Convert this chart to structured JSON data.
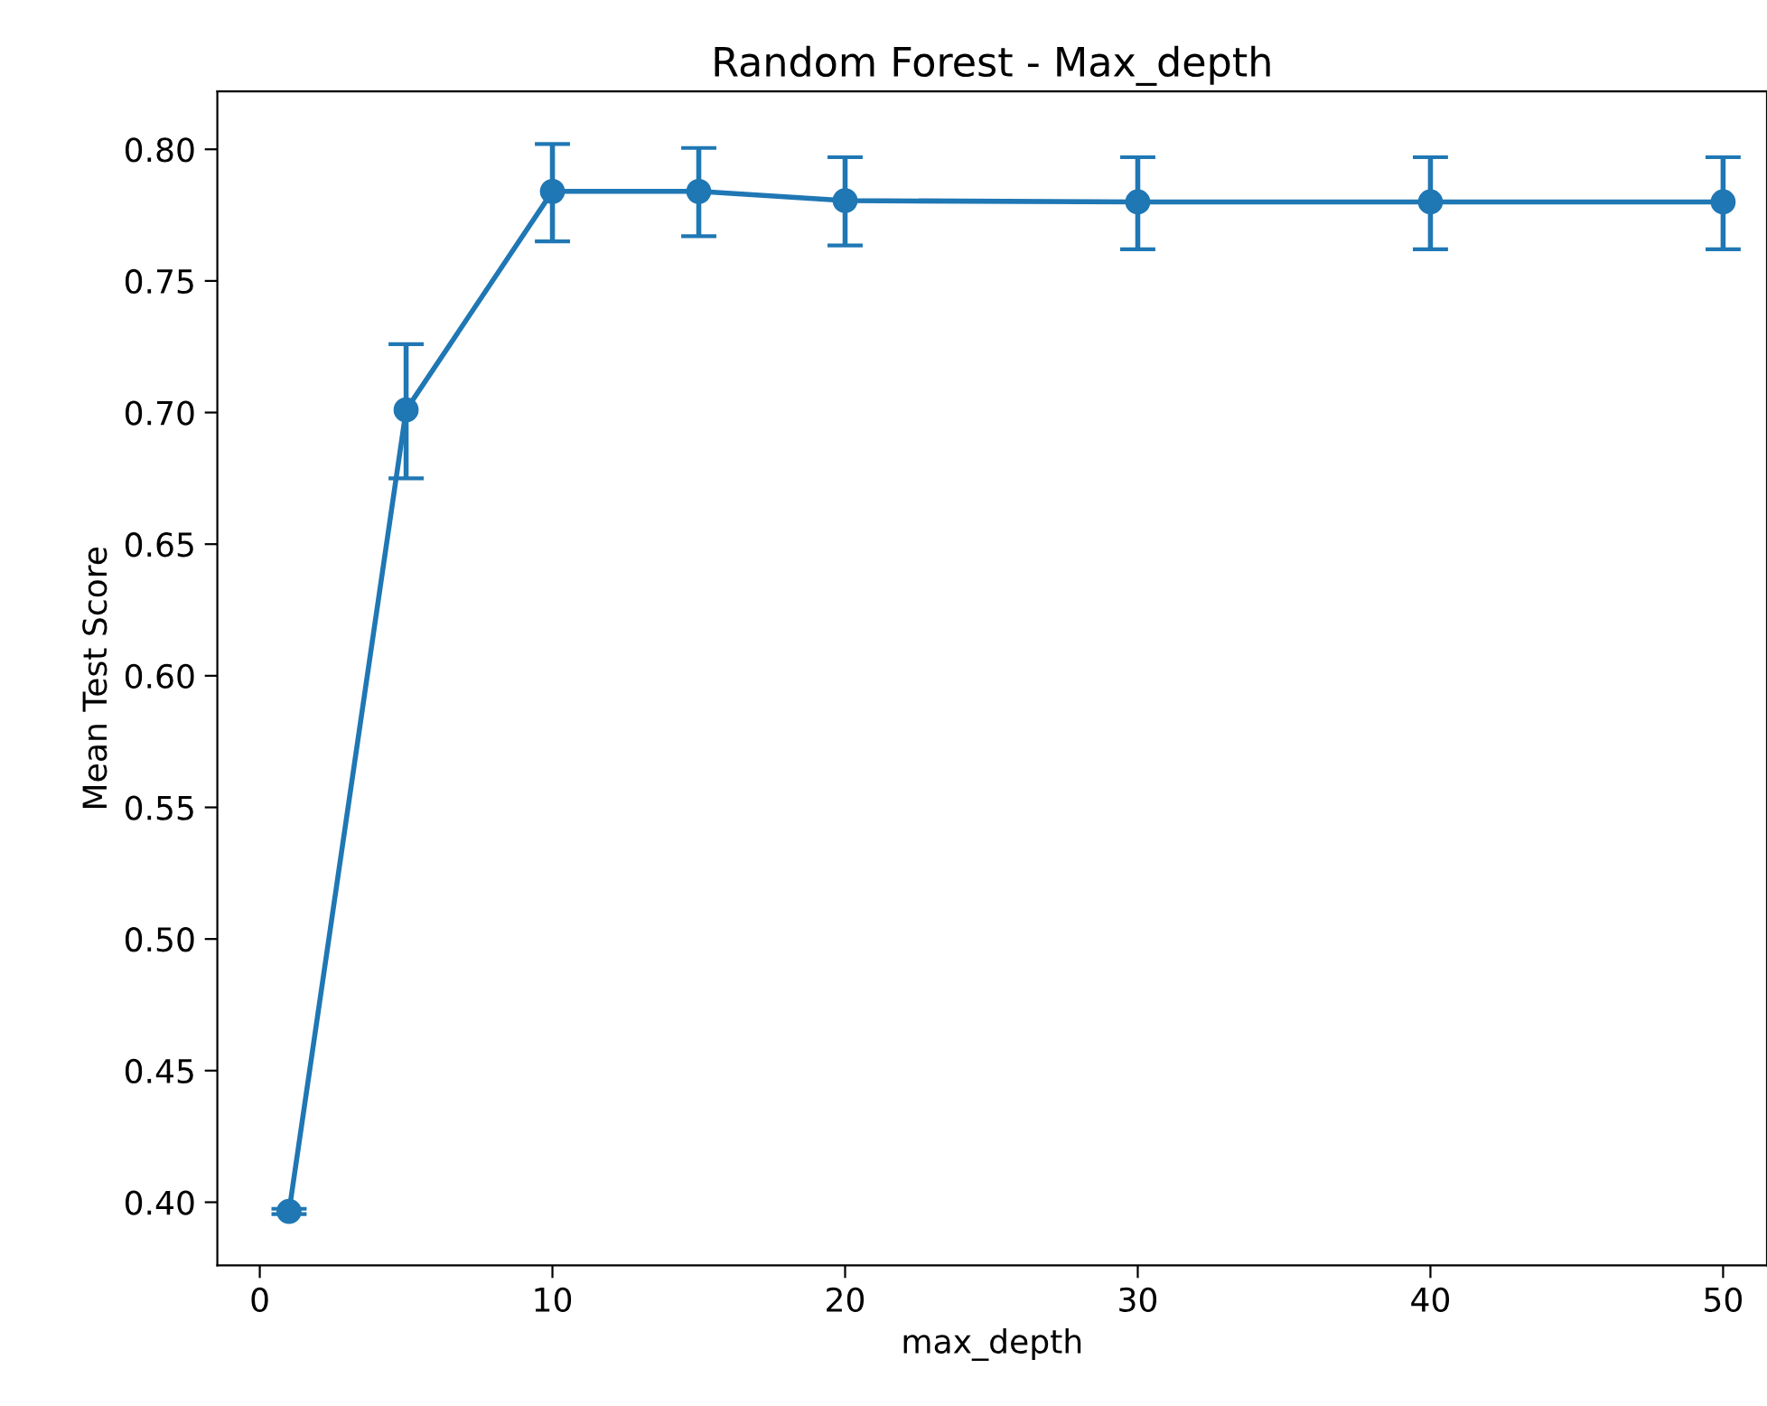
{
  "chart_data": {
    "type": "line",
    "title": "Random Forest - Max_depth",
    "xlabel": "max_depth",
    "ylabel": "Mean Test Score",
    "x": [
      1,
      5,
      10,
      15,
      20,
      30,
      40,
      50
    ],
    "series": [
      {
        "color": "#1f77b4",
        "values": [
          0.3965,
          0.701,
          0.784,
          0.784,
          0.7805,
          0.78,
          0.78,
          0.78
        ],
        "errors": [
          0.001,
          [
            0.675,
            0.726
          ],
          [
            0.765,
            0.802
          ],
          [
            0.767,
            0.8005
          ],
          [
            0.7635,
            0.797
          ],
          [
            0.762,
            0.797
          ],
          [
            0.762,
            0.797
          ],
          [
            0.762,
            0.797
          ]
        ]
      }
    ],
    "marker": "circle",
    "line_style": "solid",
    "xlim": [
      -1.45,
      51.5
    ],
    "xticks": [
      0,
      10,
      20,
      30,
      40,
      50
    ],
    "ylim": [
      0.376,
      0.822
    ],
    "yticks": [
      {
        "value": 0.4,
        "label": "0.40"
      },
      {
        "value": 0.45,
        "label": "0.45"
      },
      {
        "value": 0.5,
        "label": "0.50"
      },
      {
        "value": 0.55,
        "label": "0.55"
      },
      {
        "value": 0.6,
        "label": "0.60"
      },
      {
        "value": 0.65,
        "label": "0.65"
      },
      {
        "value": 0.7,
        "label": "0.70"
      },
      {
        "value": 0.75,
        "label": "0.75"
      },
      {
        "value": 0.8,
        "label": "0.80"
      }
    ]
  }
}
